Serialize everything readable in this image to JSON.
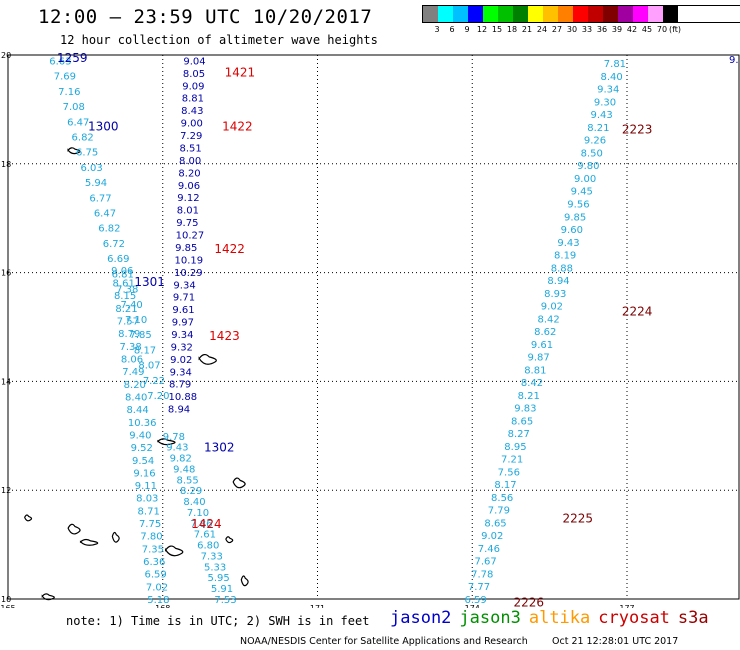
{
  "title": "12:00 – 23:59 UTC 10/20/2017",
  "subtitle": "12 hour collection of altimeter wave heights",
  "colorbar": {
    "colors": [
      "#808080",
      "#00ffff",
      "#00c0ff",
      "#0000ff",
      "#00ff00",
      "#00c000",
      "#008000",
      "#ffff00",
      "#ffc000",
      "#ff8000",
      "#ff0000",
      "#c00000",
      "#800000",
      "#a000a0",
      "#ff00ff",
      "#ffa0ff",
      "#000000"
    ],
    "labels": [
      "3",
      "6",
      "9",
      "12",
      "15",
      "18",
      "21",
      "24",
      "27",
      "30",
      "33",
      "36",
      "39",
      "42",
      "45",
      "70",
      "(ft)"
    ]
  },
  "axes": {
    "lon_ticks": [
      "165",
      "168",
      "171",
      "174",
      "177"
    ],
    "lat_ticks": [
      "10",
      "12",
      "14",
      "16",
      "18",
      "20"
    ]
  },
  "footer": {
    "note": "note: 1) Time is in UTC; 2) SWH is in feet",
    "legend": [
      {
        "name": "jason2",
        "color": "#0000c8"
      },
      {
        "name": "jason3",
        "color": "#009000"
      },
      {
        "name": "altika",
        "color": "#ff9900"
      },
      {
        "name": "cryosat",
        "color": "#cc0000"
      },
      {
        "name": "s3a",
        "color": "#990000"
      }
    ],
    "credit": "NOAA/NESDIS Center for Satellite Applications and Research",
    "timestamp": "Oct 21 12:28:01 UTC 2017"
  },
  "colors": {
    "lt": "#1ea8dc",
    "dk": "#0000aa",
    "red": "#dd0000",
    "maroon": "#7a0000"
  },
  "tracks": [
    {
      "id": "A",
      "c": "lt",
      "lon0": 165.8,
      "lat0": 19.9,
      "lon1": 167.7,
      "lat1": 13.75,
      "values": [
        "6.63",
        "7.69",
        "7.16",
        "7.08",
        "6.47",
        "6.82",
        "6.75",
        "6.03",
        "5.94",
        "6.77",
        "6.47",
        "6.82",
        "6.72",
        "6.69",
        "6.81",
        "7.38",
        "7.40",
        "7.10",
        "7.85",
        "8.17",
        "8.07",
        "7.22",
        "7.20"
      ]
    },
    {
      "id": "B",
      "c": "lt",
      "lon0": 167.0,
      "lat0": 16.05,
      "lon1": 167.7,
      "lat1": 10.0,
      "values": [
        "9.06",
        "8.61",
        "8.15",
        "8.21",
        "7.57",
        "8.79",
        "7.38",
        "8.06",
        "7.49",
        "8.20",
        "8.40",
        "8.44",
        "10.36",
        "9.40",
        "9.52",
        "9.54",
        "9.16",
        "9.11",
        "8.03",
        "8.71",
        "7.75",
        "7.80",
        "7.35",
        "6.36",
        "6.59",
        "7.02",
        "5.18"
      ]
    },
    {
      "id": "C",
      "c": "dk",
      "lon0": 168.4,
      "lat0": 19.9,
      "lon1": 168.1,
      "lat1": 13.5,
      "values": [
        "9.04",
        "8.05",
        "9.09",
        "8.81",
        "8.43",
        "9.00",
        "7.29",
        "8.51",
        "8.00",
        "8.20",
        "9.06",
        "9.12",
        "8.01",
        "9.75",
        "10.27",
        "9.85",
        "10.19",
        "10.29",
        "9.34",
        "9.71",
        "9.61",
        "9.97",
        "9.34",
        "9.32",
        "9.02",
        "9.34",
        "8.79",
        "10.88",
        "8.94"
      ]
    },
    {
      "id": "D",
      "c": "lt",
      "lon0": 168.0,
      "lat0": 13.0,
      "lon1": 169.0,
      "lat1": 10.0,
      "values": [
        "9.78",
        "9.43",
        "9.82",
        "9.48",
        "8.55",
        "8.29",
        "8.40",
        "7.10",
        "7.86",
        "7.61",
        "6.80",
        "7.33",
        "5.33",
        "5.95",
        "5.91",
        "7.53"
      ]
    },
    {
      "id": "E",
      "c": "lt",
      "lon0": 176.55,
      "lat0": 19.85,
      "lon1": 173.85,
      "lat1": 10.0,
      "values": [
        "7.81",
        "8.40",
        "9.34",
        "9.30",
        "9.43",
        "8.21",
        "9.26",
        "8.50",
        "9.80",
        "9.00",
        "9.45",
        "9.56",
        "9.85",
        "9.60",
        "9.43",
        "8.19",
        "8.88",
        "8.94",
        "8.93",
        "9.02",
        "8.42",
        "8.62",
        "9.61",
        "9.87",
        "8.81",
        "8.42",
        "8.21",
        "9.83",
        "8.65",
        "8.27",
        "8.95",
        "7.21",
        "7.56",
        "8.17",
        "8.56",
        "7.79",
        "8.65",
        "9.02",
        "7.46",
        "7.67",
        "7.78",
        "7.77",
        "6.59"
      ]
    }
  ],
  "edge_value": "9.",
  "pass_labels": [
    {
      "text": "1259",
      "c": "dk",
      "lon": 165.95,
      "lat": 19.96
    },
    {
      "text": "1300",
      "c": "dk",
      "lon": 166.55,
      "lat": 18.7
    },
    {
      "text": "1301",
      "c": "dk",
      "lon": 167.45,
      "lat": 15.85
    },
    {
      "text": "1302",
      "c": "dk",
      "lon": 168.8,
      "lat": 12.8
    },
    {
      "text": "1421",
      "c": "red",
      "lon": 169.2,
      "lat": 19.7
    },
    {
      "text": "1422",
      "c": "red",
      "lon": 169.15,
      "lat": 18.7
    },
    {
      "text": "1422",
      "c": "red",
      "lon": 169.0,
      "lat": 16.45
    },
    {
      "text": "1423",
      "c": "red",
      "lon": 168.9,
      "lat": 14.85
    },
    {
      "text": "1424",
      "c": "red",
      "lon": 168.55,
      "lat": 11.4
    },
    {
      "text": "2223",
      "c": "maroon",
      "lon": 176.9,
      "lat": 18.65
    },
    {
      "text": "2224",
      "c": "maroon",
      "lon": 176.9,
      "lat": 15.3
    },
    {
      "text": "2225",
      "c": "maroon",
      "lon": 175.75,
      "lat": 11.5
    },
    {
      "text": "2226",
      "c": "maroon",
      "lon": 174.8,
      "lat": 9.95
    }
  ],
  "islands": [
    {
      "lon": 165.4,
      "lat": 11.5
    },
    {
      "lon": 166.3,
      "lat": 11.3
    },
    {
      "lon": 166.6,
      "lat": 11.05
    },
    {
      "lon": 167.1,
      "lat": 11.15
    },
    {
      "lon": 166.3,
      "lat": 18.25
    },
    {
      "lon": 168.9,
      "lat": 14.42
    },
    {
      "lon": 169.3,
      "lat": 11.1
    },
    {
      "lon": 169.5,
      "lat": 12.15
    },
    {
      "lon": 168.1,
      "lat": 12.9
    },
    {
      "lon": 169.6,
      "lat": 10.35
    },
    {
      "lon": 165.8,
      "lat": 10.05
    },
    {
      "lon": 168.25,
      "lat": 10.9
    }
  ]
}
